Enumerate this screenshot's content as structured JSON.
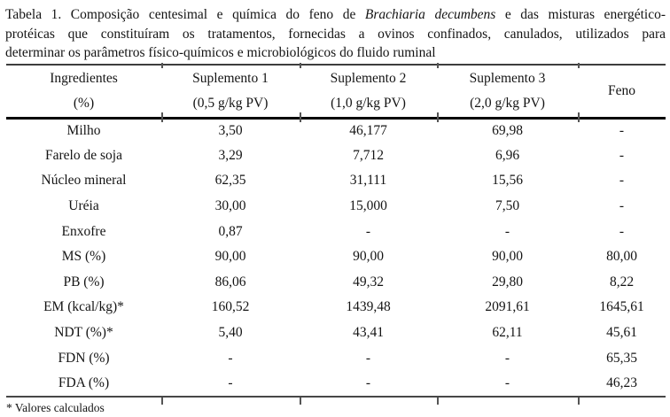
{
  "caption": {
    "lines": [
      {
        "pre": "Tabela 1. Composição centesimal e química do feno de ",
        "italic": "Brachiaria decumbens",
        "post": " e das misturas energético-"
      },
      {
        "pre": "protéicas que constituíram os tratamentos, fornecidas a ovinos confinados, canulados, utilizados para",
        "italic": "",
        "post": ""
      },
      {
        "pre": "determinar os parâmetros físico-químicos e microbiológicos do fluido ruminal",
        "italic": "",
        "post": ""
      }
    ]
  },
  "table": {
    "header": [
      {
        "line1": "Ingredientes",
        "line2": "(%)"
      },
      {
        "line1": "Suplemento 1",
        "line2": "(0,5 g/kg PV)"
      },
      {
        "line1": "Suplemento 2",
        "line2": "(1,0 g/kg PV)"
      },
      {
        "line1": "Suplemento 3",
        "line2": "(2,0 g/kg PV)"
      },
      {
        "line1": "Feno",
        "line2": ""
      }
    ],
    "rows": [
      {
        "label": "Milho",
        "values": [
          "3,50",
          "46,177",
          "69,98",
          "-"
        ]
      },
      {
        "label": "Farelo de soja",
        "values": [
          "3,29",
          "7,712",
          "6,96",
          "-"
        ]
      },
      {
        "label": "Núcleo mineral",
        "values": [
          "62,35",
          "31,111",
          "15,56",
          "-"
        ]
      },
      {
        "label": "Uréia",
        "values": [
          "30,00",
          "15,000",
          "7,50",
          "-"
        ]
      },
      {
        "label": "Enxofre",
        "values": [
          "0,87",
          "-",
          "-",
          "-"
        ]
      },
      {
        "label": "MS (%)",
        "values": [
          "90,00",
          "90,00",
          "90,00",
          "80,00"
        ]
      },
      {
        "label": "PB (%)",
        "values": [
          "86,06",
          "49,32",
          "29,80",
          "8,22"
        ]
      },
      {
        "label": "EM (kcal/kg)*",
        "values": [
          "160,52",
          "1439,48",
          "2091,61",
          "1645,61"
        ]
      },
      {
        "label": "NDT (%)*",
        "values": [
          "5,40",
          "43,41",
          "62,11",
          "45,61"
        ]
      },
      {
        "label": "FDN (%)",
        "values": [
          "-",
          "-",
          "-",
          "65,35"
        ]
      },
      {
        "label": "FDA (%)",
        "values": [
          "-",
          "-",
          "-",
          "46,23"
        ]
      }
    ]
  },
  "footnote": "* Valores calculados"
}
